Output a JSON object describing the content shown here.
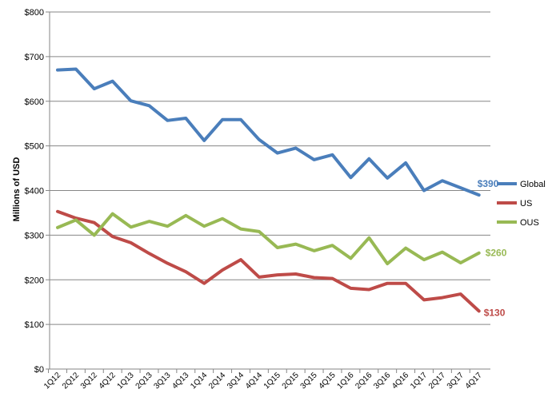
{
  "chart_data": {
    "type": "line",
    "title": "",
    "xlabel": "",
    "ylabel": "Millions of USD",
    "ylim": [
      0,
      800
    ],
    "yticks": [
      0,
      100,
      200,
      300,
      400,
      500,
      600,
      700,
      800
    ],
    "ytick_labels": [
      "$0",
      "$100",
      "$200",
      "$300",
      "$400",
      "$500",
      "$600",
      "$700",
      "$800"
    ],
    "grid": true,
    "legend_position": "right",
    "categories": [
      "1Q12",
      "2Q12",
      "3Q12",
      "4Q12",
      "1Q13",
      "2Q13",
      "3Q13",
      "4Q13",
      "1Q14",
      "2Q14",
      "3Q14",
      "4Q14",
      "1Q15",
      "2Q15",
      "3Q15",
      "4Q15",
      "1Q16",
      "2Q16",
      "3Q16",
      "4Q16",
      "1Q17",
      "2Q17",
      "3Q17",
      "4Q17"
    ],
    "series": [
      {
        "name": "Global",
        "color": "#4a7ebb",
        "values": [
          670,
          672,
          628,
          645,
          601,
          590,
          557,
          562,
          512,
          559,
          559,
          514,
          484,
          495,
          469,
          480,
          429,
          471,
          428,
          462,
          400,
          422,
          406,
          390
        ],
        "end_label": "$390"
      },
      {
        "name": "US",
        "color": "#be4b48",
        "values": [
          353,
          338,
          328,
          297,
          283,
          259,
          237,
          218,
          192,
          222,
          245,
          206,
          211,
          213,
          205,
          203,
          181,
          178,
          192,
          192,
          155,
          160,
          168,
          130
        ],
        "end_label": "$130"
      },
      {
        "name": "OUS",
        "color": "#98b954",
        "values": [
          317,
          334,
          300,
          348,
          318,
          331,
          320,
          344,
          320,
          337,
          314,
          308,
          272,
          280,
          265,
          277,
          248,
          294,
          236,
          271,
          245,
          262,
          238,
          260
        ],
        "end_label": "$260"
      }
    ]
  }
}
